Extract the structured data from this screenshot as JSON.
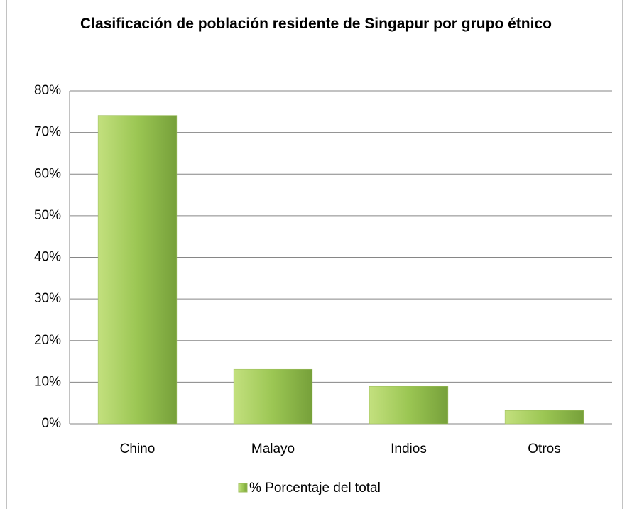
{
  "chart_data": {
    "type": "bar",
    "title": "Clasificación de población residente de Singapur por grupo étnico",
    "categories": [
      "Chino",
      "Malayo",
      "Indios",
      "Otros"
    ],
    "series": [
      {
        "name": "% Porcentaje del total",
        "color": "#9bbb59",
        "values": [
          74.1,
          13.1,
          9.0,
          3.2
        ]
      }
    ],
    "ylim": [
      0,
      80
    ],
    "yticks": [
      {
        "value": 0,
        "label": "0%"
      },
      {
        "value": 10,
        "label": "10%"
      },
      {
        "value": 20,
        "label": "20%"
      },
      {
        "value": 30,
        "label": "30%"
      },
      {
        "value": 40,
        "label": "40%"
      },
      {
        "value": 50,
        "label": "50%"
      },
      {
        "value": 60,
        "label": "60%"
      },
      {
        "value": 70,
        "label": "70%"
      },
      {
        "value": 80,
        "label": "80%"
      }
    ],
    "grid": true,
    "legend": "bottom"
  }
}
